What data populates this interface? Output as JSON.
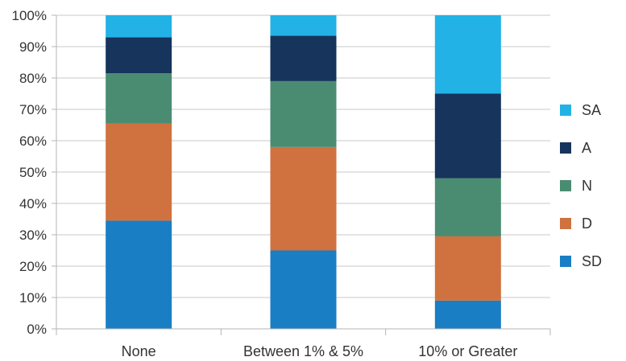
{
  "chart_data": {
    "type": "bar",
    "stacked": true,
    "normalized": true,
    "categories": [
      "None",
      "Between 1% & 5%",
      "10% or Greater"
    ],
    "series": [
      {
        "name": "SD",
        "color": "#1a7ec4",
        "values": [
          34.5,
          25.0,
          9.0
        ]
      },
      {
        "name": "D",
        "color": "#cf7240",
        "values": [
          31.0,
          33.0,
          20.5
        ]
      },
      {
        "name": "N",
        "color": "#4a8c72",
        "values": [
          16.0,
          21.0,
          18.5
        ]
      },
      {
        "name": "A",
        "color": "#17345c",
        "values": [
          11.5,
          14.5,
          27.0
        ]
      },
      {
        "name": "SA",
        "color": "#22b2e6",
        "values": [
          7.0,
          6.5,
          25.0
        ]
      }
    ],
    "y_ticks": [
      "0%",
      "10%",
      "20%",
      "30%",
      "40%",
      "50%",
      "60%",
      "70%",
      "80%",
      "90%",
      "100%"
    ],
    "ylim": [
      0,
      100
    ],
    "grid": true,
    "legend_position": "right",
    "title": "",
    "xlabel": "",
    "ylabel": ""
  }
}
